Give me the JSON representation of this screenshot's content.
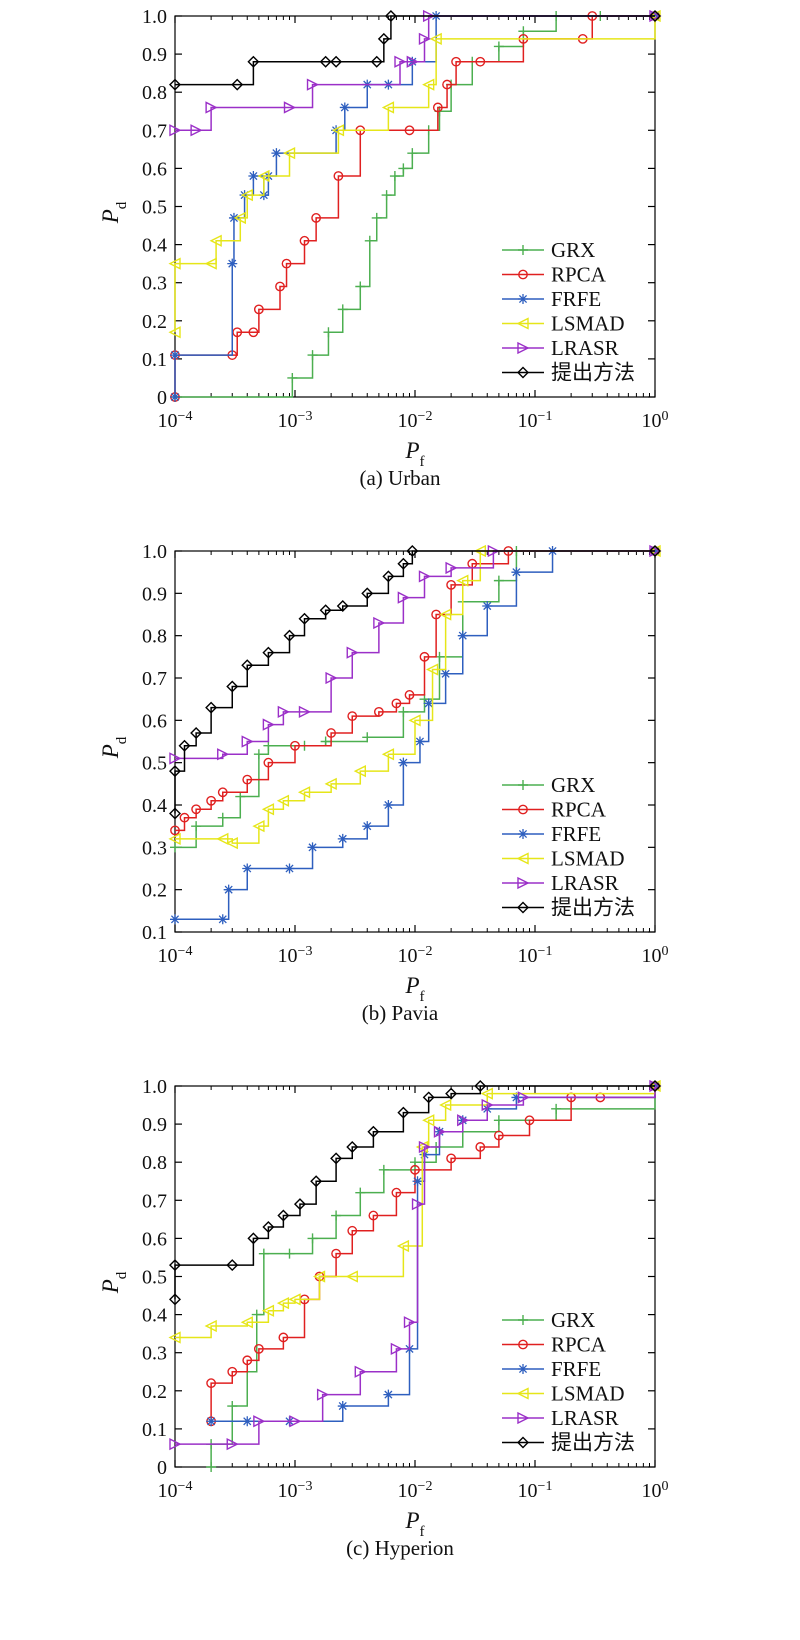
{
  "legend_labels": [
    "GRX",
    "RPCA",
    "FRFE",
    "LSMAD",
    "LRASR",
    "提出方法"
  ],
  "series_colors": {
    "GRX": "#4caf50",
    "RPCA": "#e02020",
    "FRFE": "#2e5fbf",
    "LSMAD": "#e6e619",
    "LRASR": "#9b30c8",
    "提出方法": "#000000"
  },
  "series_markers": {
    "GRX": "plus",
    "RPCA": "circle",
    "FRFE": "asterisk",
    "LSMAD": "triangle-left",
    "LRASR": "triangle-right",
    "提出方法": "diamond"
  },
  "chart_data": [
    {
      "type": "line",
      "caption": "(a) Urban",
      "xlabel": "P_f",
      "ylabel": "P_d",
      "xscale": "log",
      "xlim": [
        0.0001,
        1
      ],
      "ylim": [
        0,
        1.0
      ],
      "xticks": [
        "10^-4",
        "10^-3",
        "10^-2",
        "10^-1",
        "10^0"
      ],
      "yticks": [
        "0",
        "0.1",
        "0.2",
        "0.3",
        "0.4",
        "0.5",
        "0.6",
        "0.7",
        "0.8",
        "0.9",
        "1.0"
      ],
      "legend_position": "bottom-right",
      "series": [
        {
          "name": "GRX",
          "x": [
            0.0001,
            0.00095,
            0.0014,
            0.0019,
            0.0025,
            0.0035,
            0.0042,
            0.0048,
            0.0058,
            0.0068,
            0.008,
            0.0095,
            0.013,
            0.016,
            0.02,
            0.03,
            0.05,
            0.08,
            0.15,
            0.35,
            1
          ],
          "y": [
            0,
            0.05,
            0.11,
            0.17,
            0.23,
            0.29,
            0.41,
            0.47,
            0.53,
            0.58,
            0.6,
            0.64,
            0.7,
            0.75,
            0.82,
            0.88,
            0.92,
            0.96,
            1.0,
            1.0,
            1.0
          ]
        },
        {
          "name": "RPCA",
          "x": [
            0.0001,
            0.0001,
            0.0003,
            0.00033,
            0.00045,
            0.0005,
            0.00075,
            0.00085,
            0.0012,
            0.0015,
            0.0023,
            0.0035,
            0.009,
            0.0155,
            0.0185,
            0.022,
            0.035,
            0.08,
            0.25,
            0.3,
            1
          ],
          "y": [
            0,
            0.11,
            0.11,
            0.17,
            0.17,
            0.23,
            0.29,
            0.35,
            0.41,
            0.47,
            0.58,
            0.7,
            0.7,
            0.76,
            0.82,
            0.88,
            0.88,
            0.94,
            0.94,
            1.0,
            1.0
          ]
        },
        {
          "name": "FRFE",
          "x": [
            0.0001,
            0.0001,
            0.0003,
            0.00031,
            0.00038,
            0.00045,
            0.00055,
            0.0006,
            0.0007,
            0.0022,
            0.0026,
            0.004,
            0.006,
            0.0095,
            0.015,
            1
          ],
          "y": [
            0,
            0.11,
            0.35,
            0.47,
            0.53,
            0.58,
            0.53,
            0.58,
            0.64,
            0.7,
            0.76,
            0.82,
            0.82,
            0.88,
            1.0,
            1.0
          ]
        },
        {
          "name": "LSMAD",
          "x": [
            0.0001,
            0.0001,
            0.0002,
            0.00022,
            0.00035,
            0.0004,
            0.00055,
            0.0009,
            0.0023,
            0.006,
            0.013,
            0.015,
            1
          ],
          "y": [
            0.17,
            0.35,
            0.35,
            0.41,
            0.47,
            0.53,
            0.58,
            0.64,
            0.7,
            0.76,
            0.82,
            0.94,
            1.0
          ]
        },
        {
          "name": "LRASR",
          "x": [
            0.0001,
            0.00015,
            0.0002,
            0.0009,
            0.0014,
            0.0075,
            0.0095,
            0.012,
            0.013,
            1
          ],
          "y": [
            0.7,
            0.7,
            0.76,
            0.76,
            0.82,
            0.88,
            0.88,
            0.94,
            1.0,
            1.0
          ]
        },
        {
          "name": "提出方法",
          "x": [
            0.0001,
            0.00033,
            0.00045,
            0.0018,
            0.0022,
            0.0048,
            0.0055,
            0.0063,
            1
          ],
          "y": [
            0.82,
            0.82,
            0.88,
            0.88,
            0.88,
            0.88,
            0.94,
            1.0,
            1.0
          ]
        }
      ]
    },
    {
      "type": "line",
      "caption": "(b) Pavia",
      "xlabel": "P_f",
      "ylabel": "P_d",
      "xscale": "log",
      "xlim": [
        0.0001,
        1
      ],
      "ylim": [
        0.1,
        1.0
      ],
      "xticks": [
        "10^-4",
        "10^-3",
        "10^-2",
        "10^-1",
        "10^0"
      ],
      "yticks": [
        "0.1",
        "0.2",
        "0.3",
        "0.4",
        "0.5",
        "0.6",
        "0.7",
        "0.8",
        "0.9",
        "1.0"
      ],
      "legend_position": "bottom-right",
      "series": [
        {
          "name": "GRX",
          "x": [
            0.0001,
            0.00015,
            0.00025,
            0.00035,
            0.0005,
            0.0006,
            0.0012,
            0.0018,
            0.004,
            0.008,
            0.012,
            0.016,
            0.025,
            0.05,
            0.07,
            1
          ],
          "y": [
            0.3,
            0.35,
            0.37,
            0.42,
            0.52,
            0.54,
            0.54,
            0.55,
            0.56,
            0.62,
            0.65,
            0.75,
            0.88,
            0.93,
            1.0,
            1.0
          ]
        },
        {
          "name": "RPCA",
          "x": [
            0.0001,
            0.00012,
            0.00015,
            0.0002,
            0.00025,
            0.0004,
            0.0006,
            0.001,
            0.002,
            0.003,
            0.005,
            0.007,
            0.009,
            0.012,
            0.015,
            0.02,
            0.03,
            0.06,
            1
          ],
          "y": [
            0.34,
            0.37,
            0.39,
            0.41,
            0.43,
            0.46,
            0.5,
            0.54,
            0.57,
            0.61,
            0.62,
            0.64,
            0.66,
            0.75,
            0.85,
            0.92,
            0.97,
            1.0,
            1.0
          ]
        },
        {
          "name": "FRFE",
          "x": [
            0.0001,
            0.00025,
            0.00028,
            0.0004,
            0.0009,
            0.0014,
            0.0025,
            0.004,
            0.006,
            0.008,
            0.011,
            0.013,
            0.018,
            0.025,
            0.04,
            0.07,
            0.14,
            1
          ],
          "y": [
            0.13,
            0.13,
            0.2,
            0.25,
            0.25,
            0.3,
            0.32,
            0.35,
            0.4,
            0.5,
            0.55,
            0.64,
            0.71,
            0.8,
            0.87,
            0.95,
            1.0,
            1.0
          ]
        },
        {
          "name": "LSMAD",
          "x": [
            0.0001,
            0.00025,
            0.0003,
            0.0005,
            0.0006,
            0.0008,
            0.0012,
            0.002,
            0.0035,
            0.006,
            0.01,
            0.014,
            0.018,
            0.025,
            0.035,
            1
          ],
          "y": [
            0.32,
            0.32,
            0.31,
            0.35,
            0.39,
            0.41,
            0.43,
            0.45,
            0.48,
            0.52,
            0.6,
            0.72,
            0.85,
            0.93,
            1.0,
            1.0
          ]
        },
        {
          "name": "LRASR",
          "x": [
            0.0001,
            0.00025,
            0.0004,
            0.0006,
            0.0008,
            0.0012,
            0.002,
            0.003,
            0.005,
            0.008,
            0.012,
            0.02,
            0.045,
            1
          ],
          "y": [
            0.51,
            0.52,
            0.55,
            0.59,
            0.62,
            0.62,
            0.7,
            0.76,
            0.83,
            0.89,
            0.94,
            0.96,
            1.0,
            1.0
          ]
        },
        {
          "name": "提出方法",
          "x": [
            0.0001,
            0.0001,
            0.00012,
            0.00015,
            0.0002,
            0.0003,
            0.0004,
            0.0006,
            0.0009,
            0.0012,
            0.0018,
            0.0025,
            0.004,
            0.006,
            0.008,
            0.0095,
            1
          ],
          "y": [
            0.38,
            0.48,
            0.54,
            0.57,
            0.63,
            0.68,
            0.73,
            0.76,
            0.8,
            0.84,
            0.86,
            0.87,
            0.9,
            0.94,
            0.97,
            1.0,
            1.0
          ]
        }
      ]
    },
    {
      "type": "line",
      "caption": "(c) Hyperion",
      "xlabel": "P_f",
      "ylabel": "P_d",
      "xscale": "log",
      "xlim": [
        0.0001,
        1
      ],
      "ylim": [
        0,
        1.0
      ],
      "xticks": [
        "10^-4",
        "10^-3",
        "10^-2",
        "10^-1",
        "10^0"
      ],
      "yticks": [
        "0",
        "0.1",
        "0.2",
        "0.3",
        "0.4",
        "0.5",
        "0.6",
        "0.7",
        "0.8",
        "0.9",
        "1.0"
      ],
      "legend_position": "bottom-right",
      "series": [
        {
          "name": "GRX",
          "x": [
            0.0002,
            0.0002,
            0.0003,
            0.0004,
            0.00048,
            0.00055,
            0.0009,
            0.0014,
            0.0022,
            0.0035,
            0.0055,
            0.01,
            0.015,
            0.025,
            0.05,
            0.15,
            1
          ],
          "y": [
            0,
            0.06,
            0.16,
            0.25,
            0.4,
            0.56,
            0.56,
            0.6,
            0.66,
            0.72,
            0.78,
            0.8,
            0.84,
            0.88,
            0.91,
            0.94,
            1.0
          ]
        },
        {
          "name": "RPCA",
          "x": [
            0.0002,
            0.0002,
            0.0003,
            0.0004,
            0.0005,
            0.0008,
            0.0012,
            0.0016,
            0.0022,
            0.003,
            0.0045,
            0.007,
            0.01,
            0.02,
            0.035,
            0.05,
            0.09,
            0.2,
            0.35,
            1
          ],
          "y": [
            0.12,
            0.22,
            0.25,
            0.28,
            0.31,
            0.34,
            0.44,
            0.5,
            0.56,
            0.62,
            0.66,
            0.72,
            0.78,
            0.81,
            0.84,
            0.87,
            0.91,
            0.97,
            0.97,
            1.0
          ]
        },
        {
          "name": "FRFE",
          "x": [
            0.0002,
            0.0004,
            0.0009,
            0.0025,
            0.006,
            0.009,
            0.0105,
            0.012,
            0.016,
            0.025,
            0.04,
            0.07,
            1
          ],
          "y": [
            0.12,
            0.12,
            0.12,
            0.16,
            0.19,
            0.31,
            0.75,
            0.82,
            0.88,
            0.91,
            0.94,
            0.97,
            1.0
          ]
        },
        {
          "name": "LSMAD",
          "x": [
            0.0001,
            0.0002,
            0.0004,
            0.0006,
            0.0008,
            0.001,
            0.0016,
            0.003,
            0.008,
            0.0115,
            0.013,
            0.018,
            0.04,
            1
          ],
          "y": [
            0.34,
            0.37,
            0.38,
            0.41,
            0.43,
            0.44,
            0.5,
            0.5,
            0.58,
            0.84,
            0.91,
            0.95,
            0.98,
            1.0
          ]
        },
        {
          "name": "LRASR",
          "x": [
            0.0001,
            0.0003,
            0.0005,
            0.001,
            0.0017,
            0.0035,
            0.007,
            0.009,
            0.0105,
            0.012,
            0.016,
            0.025,
            0.04,
            0.08,
            1
          ],
          "y": [
            0.06,
            0.06,
            0.12,
            0.12,
            0.19,
            0.25,
            0.31,
            0.38,
            0.69,
            0.84,
            0.88,
            0.91,
            0.95,
            0.97,
            1.0
          ]
        },
        {
          "name": "提出方法",
          "x": [
            0.0001,
            0.0001,
            0.0003,
            0.00045,
            0.0006,
            0.0008,
            0.0011,
            0.0015,
            0.0022,
            0.003,
            0.0045,
            0.008,
            0.013,
            0.02,
            0.035,
            1
          ],
          "y": [
            0.44,
            0.53,
            0.53,
            0.6,
            0.63,
            0.66,
            0.69,
            0.75,
            0.81,
            0.84,
            0.88,
            0.93,
            0.97,
            0.98,
            1.0,
            1.0
          ]
        }
      ]
    }
  ]
}
